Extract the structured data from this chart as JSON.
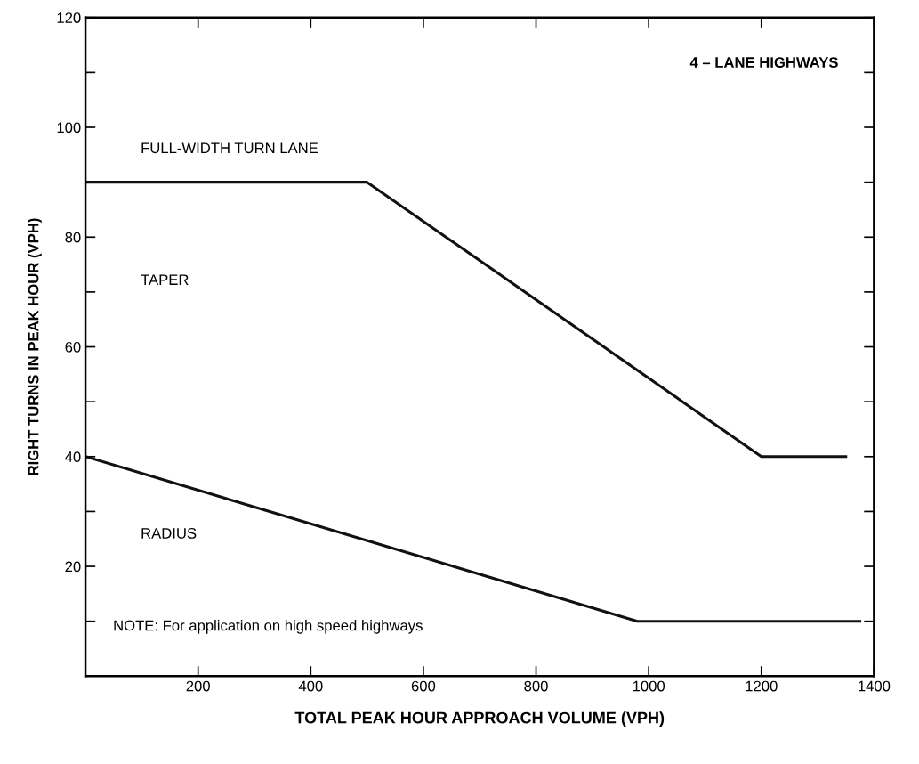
{
  "chart_data": {
    "type": "line",
    "xlabel": "TOTAL PEAK HOUR APPROACH VOLUME (VPH)",
    "ylabel": "RIGHT TURNS IN PEAK HOUR (VPH)",
    "series": [
      {
        "color": "#111111",
        "x": [
          0,
          500,
          1200,
          1350
        ],
        "values": [
          90,
          90,
          40,
          40
        ]
      },
      {
        "color": "#111111",
        "x": [
          0,
          980,
          1375
        ],
        "values": [
          40,
          10,
          10
        ]
      }
    ],
    "xlim": [
      0,
      1400
    ],
    "xticks": [
      200,
      400,
      600,
      800,
      1000,
      1200,
      1400
    ],
    "ylim": [
      0,
      120
    ],
    "yticks": [
      {
        "value": 10,
        "label": null
      },
      20,
      {
        "value": 30,
        "label": null
      },
      40,
      {
        "value": 50,
        "label": null
      },
      60,
      {
        "value": 70,
        "label": null
      },
      80,
      {
        "value": 90,
        "label": null
      },
      100,
      {
        "value": 110,
        "label": null
      },
      120
    ],
    "annotations": [
      "4 – LANE HIGHWAYS",
      "FULL-WIDTH TURN LANE",
      "TAPER",
      "RADIUS",
      "NOTE: For application on high speed highways"
    ],
    "grid": false,
    "legend": false,
    "marker": "none",
    "line_style": "solid"
  }
}
